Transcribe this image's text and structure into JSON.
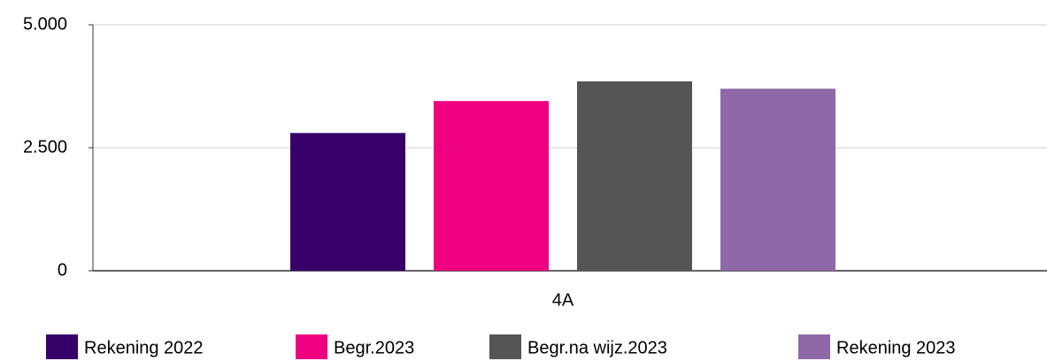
{
  "chart_data": {
    "type": "bar",
    "categories": [
      "4A"
    ],
    "series": [
      {
        "name": "Rekening 2022",
        "color": "#370069",
        "values": [
          2800
        ]
      },
      {
        "name": "Begr.2023",
        "color": "#ee0080",
        "values": [
          3450
        ]
      },
      {
        "name": "Begr.na wijz.2023",
        "color": "#555555",
        "values": [
          3850
        ]
      },
      {
        "name": "Rekening 2023",
        "color": "#8e69a8",
        "values": [
          3700
        ]
      }
    ],
    "ylim": [
      0,
      5000
    ],
    "yticks": [
      0,
      {
        "value": 2500,
        "label": "2.500"
      },
      {
        "value": 5000,
        "label": "5.000"
      }
    ],
    "grid": true
  }
}
